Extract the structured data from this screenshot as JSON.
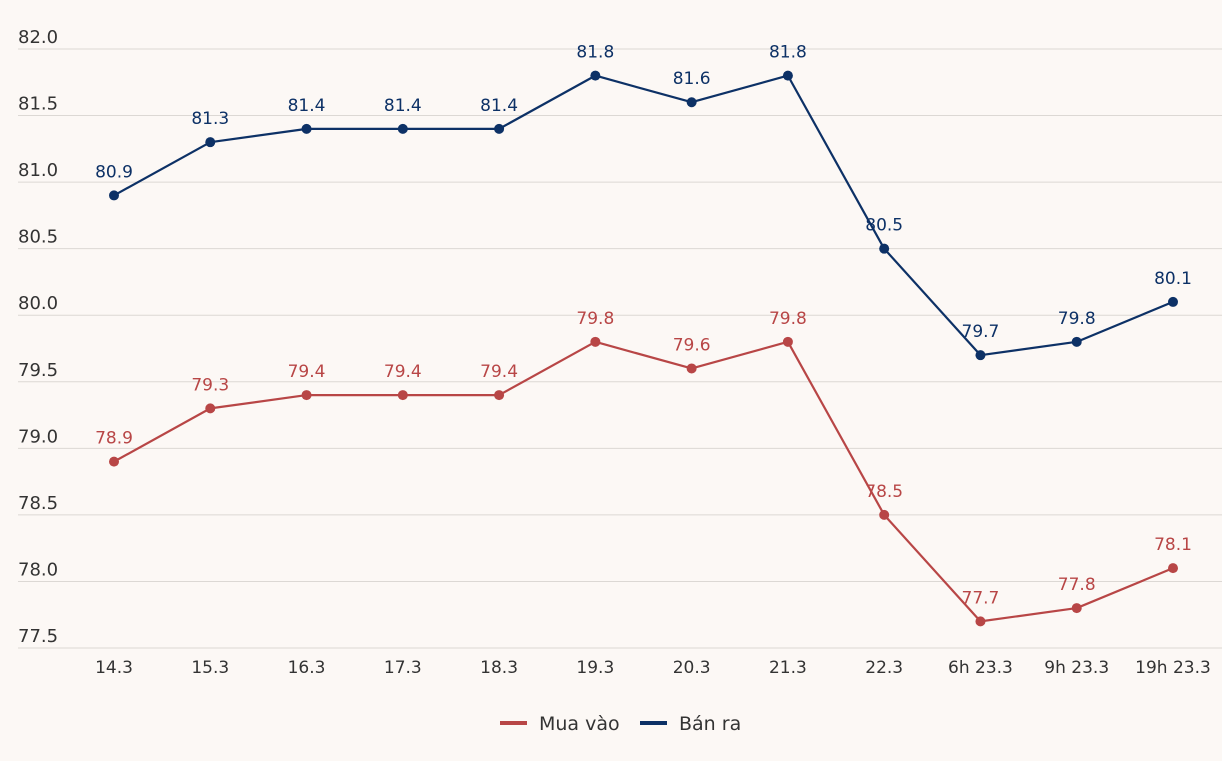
{
  "chart_data": {
    "type": "line",
    "title": "",
    "xlabel": "",
    "ylabel": "",
    "ylim": [
      77.5,
      82.0
    ],
    "yticks": [
      "82.0",
      "81.5",
      "81.0",
      "80.5",
      "80.0",
      "79.5",
      "79.0",
      "78.5",
      "78.0",
      "77.5"
    ],
    "grid": true,
    "legend_position": "bottom-center",
    "categories": [
      "14.3",
      "15.3",
      "16.3",
      "17.3",
      "18.3",
      "19.3",
      "20.3",
      "21.3",
      "22.3",
      "6h 23.3",
      "9h 23.3",
      "19h 23.3"
    ],
    "series": [
      {
        "name": "Bán ra",
        "color": "#0d3166",
        "values": [
          80.9,
          81.3,
          81.4,
          81.4,
          81.4,
          81.8,
          81.6,
          81.8,
          80.5,
          79.7,
          79.8,
          80.1
        ],
        "labels": [
          "80.9",
          "81.3",
          "81.4",
          "81.4",
          "81.4",
          "81.8",
          "81.6",
          "81.8",
          "80.5",
          "79.7",
          "79.8",
          "80.1"
        ]
      },
      {
        "name": "Mua vào",
        "color": "#b84646",
        "values": [
          78.9,
          79.3,
          79.4,
          79.4,
          79.4,
          79.8,
          79.6,
          79.8,
          78.5,
          77.7,
          77.8,
          78.1
        ],
        "labels": [
          "78.9",
          "79.3",
          "79.4",
          "79.4",
          "79.4",
          "79.8",
          "79.6",
          "79.8",
          "78.5",
          "77.7",
          "77.8",
          "78.1"
        ]
      }
    ],
    "legend": [
      {
        "name": "Mua vào",
        "color": "#b84646"
      },
      {
        "name": "Bán ra",
        "color": "#0d3166"
      }
    ]
  }
}
